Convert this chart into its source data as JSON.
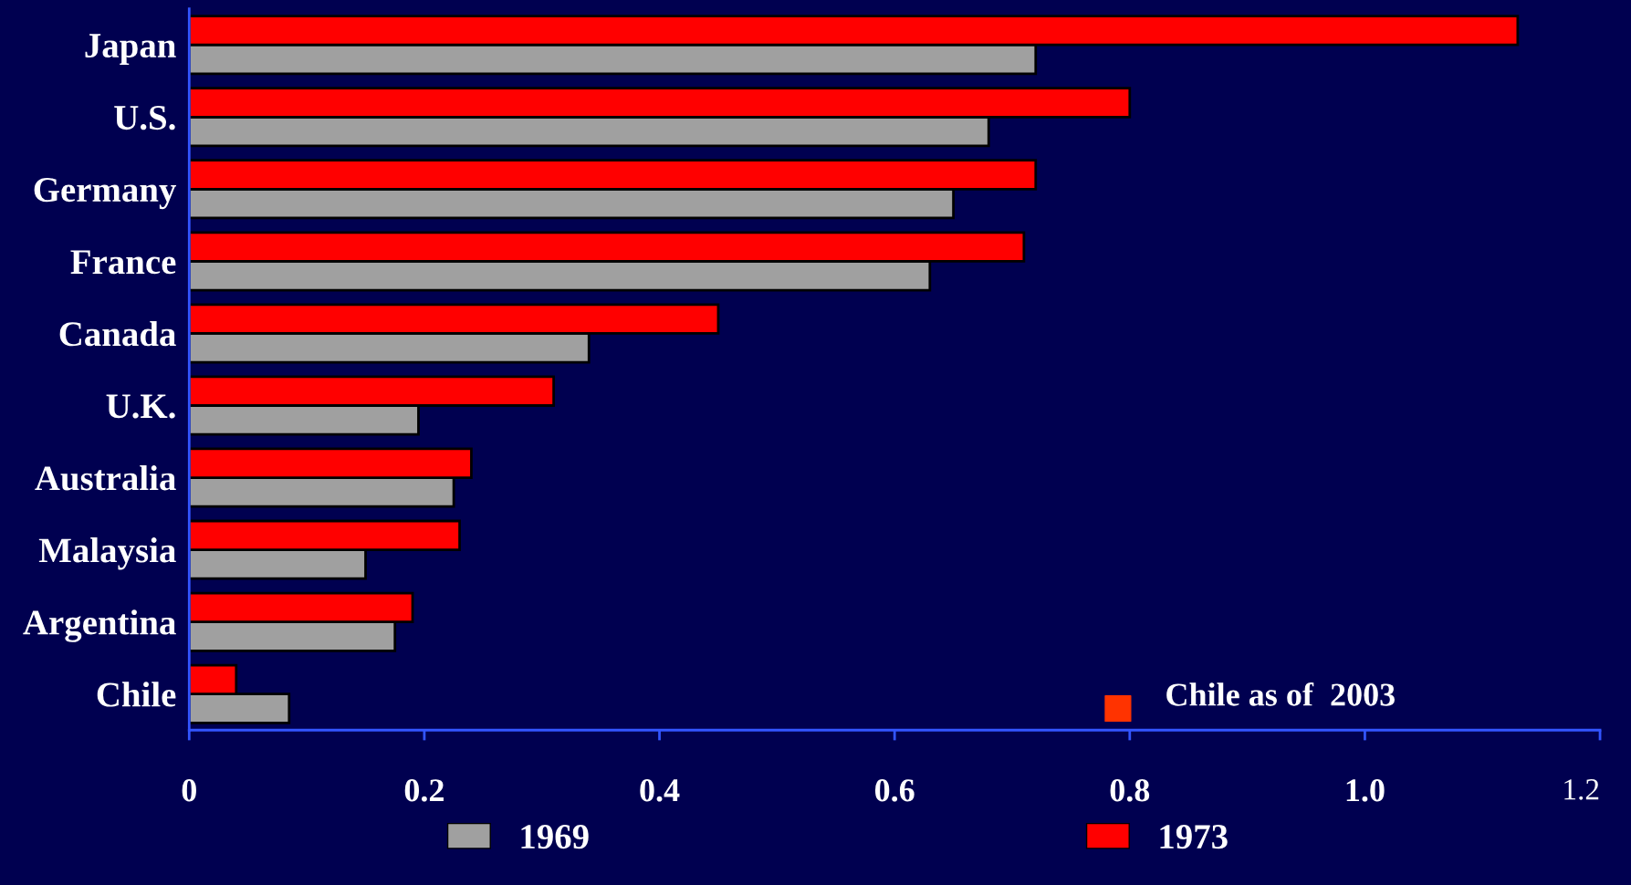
{
  "chart_data": {
    "type": "bar",
    "orientation": "horizontal",
    "categories": [
      "Japan",
      "U.S.",
      "Germany",
      "France",
      "Canada",
      "U.K.",
      "Australia",
      "Malaysia",
      "Argentina",
      "Chile"
    ],
    "series": [
      {
        "name": "1969",
        "color": "#a0a0a0",
        "values": [
          0.72,
          0.68,
          0.65,
          0.63,
          0.34,
          0.195,
          0.225,
          0.15,
          0.175,
          0.085
        ]
      },
      {
        "name": "1973",
        "color": "#ff0000",
        "values": [
          1.13,
          0.8,
          0.72,
          0.71,
          0.45,
          0.31,
          0.24,
          0.23,
          0.19,
          0.04
        ]
      },
      {
        "name": "Chile as of  2003",
        "type": "scatter",
        "color": "#ff3300",
        "values": [
          null,
          null,
          null,
          null,
          null,
          null,
          null,
          null,
          null,
          0.79
        ]
      }
    ],
    "xlim": [
      0,
      1.2
    ],
    "xticks": [
      0,
      0.2,
      0.4,
      0.6,
      0.8,
      {
        "value": 1.0,
        "label": "1.0"
      },
      1.2
    ],
    "legend": "bottom",
    "grid": false,
    "marker": "square"
  }
}
